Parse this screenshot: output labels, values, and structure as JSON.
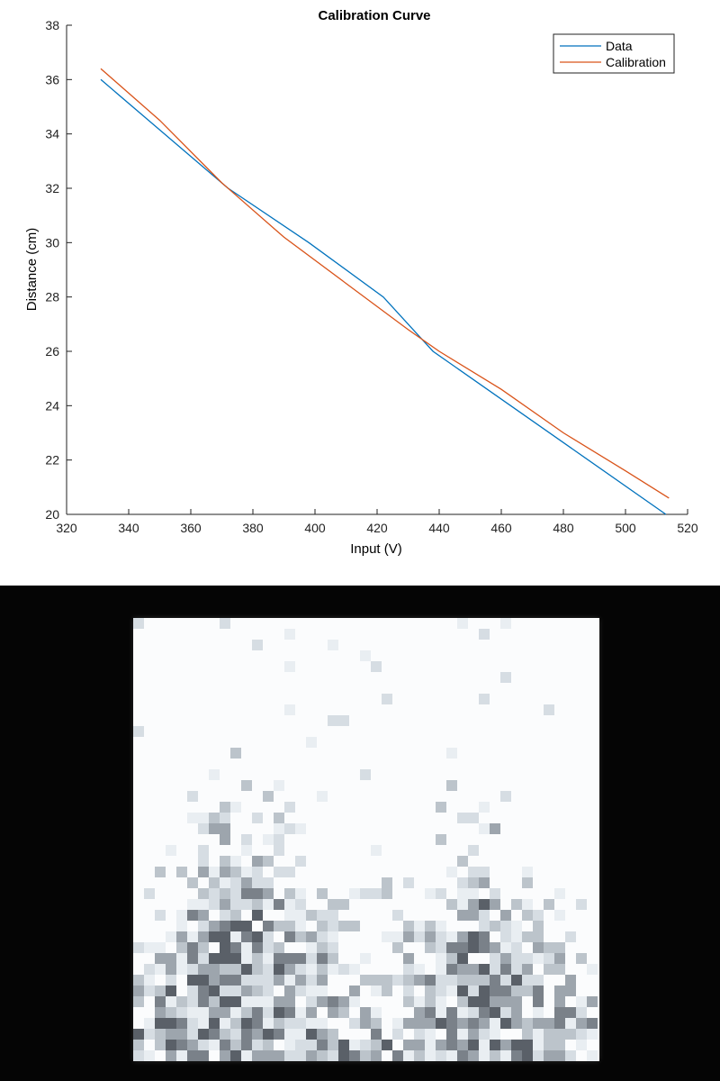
{
  "chart_data": {
    "type": "line",
    "title": "Calibration Curve",
    "xlabel": "Input (V)",
    "ylabel": "Distance (cm)",
    "xlim": [
      320,
      520
    ],
    "ylim": [
      20,
      38
    ],
    "xticks": [
      320,
      340,
      360,
      380,
      400,
      420,
      440,
      460,
      480,
      500,
      520
    ],
    "yticks": [
      20,
      22,
      24,
      26,
      28,
      30,
      32,
      34,
      36,
      38
    ],
    "legend_position": "top-right",
    "grid": false,
    "series": [
      {
        "name": "Data",
        "color": "#0072BD",
        "x": [
          331,
          372,
          398,
          422,
          438,
          513
        ],
        "y": [
          36,
          32,
          30,
          28,
          26,
          20
        ]
      },
      {
        "name": "Calibration",
        "color": "#D95319",
        "x": [
          331,
          350,
          370,
          390,
          410,
          430,
          440,
          460,
          480,
          500,
          514
        ],
        "y": [
          36.4,
          34.5,
          32.2,
          30.2,
          28.5,
          26.8,
          26.0,
          24.6,
          23.0,
          21.6,
          20.6
        ]
      }
    ]
  },
  "pixel_image": {
    "background": "#fbfcfd",
    "shades": [
      "#e9eef2",
      "#d6dde3",
      "#bcc4cb",
      "#9da5ad",
      "#7a8189",
      "#5a6068"
    ]
  }
}
